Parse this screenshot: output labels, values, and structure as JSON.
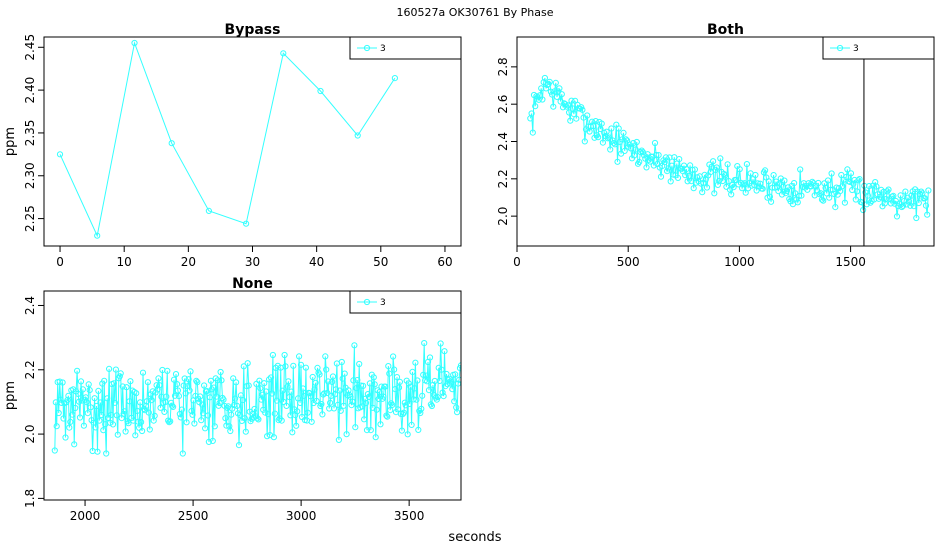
{
  "page": {
    "suptitle": "160527a   OK30761   By Phase",
    "xlabel": "seconds"
  },
  "colors": {
    "series": "#33ffff",
    "axis": "#000000",
    "marker": "#000000"
  },
  "chart_data": [
    {
      "type": "line",
      "title": "Bypass",
      "ylabel": "ppm",
      "xlim": [
        -2.5,
        62.5
      ],
      "ylim": [
        2.218,
        2.462
      ],
      "xticks": [
        "0",
        "10",
        "20",
        "30",
        "40",
        "50",
        "60"
      ],
      "xtick_values": [
        0,
        10,
        20,
        30,
        40,
        50,
        60
      ],
      "yticks": [
        "2.25",
        "2.30",
        "2.35",
        "2.40",
        "2.45"
      ],
      "ytick_values": [
        2.25,
        2.3,
        2.35,
        2.4,
        2.45
      ],
      "legend": {
        "label": "3",
        "position": "top-right"
      },
      "series": [
        {
          "name": "3",
          "x": [
            0,
            5.8,
            11.6,
            17.4,
            23.2,
            29.0,
            34.8,
            40.6,
            46.4,
            52.2
          ],
          "y": [
            2.325,
            2.23,
            2.455,
            2.338,
            2.259,
            2.244,
            2.443,
            2.399,
            2.347,
            2.414
          ]
        }
      ]
    },
    {
      "type": "line",
      "title": "Both",
      "ylabel": "",
      "xlim": [
        0,
        1875
      ],
      "ylim": [
        1.84,
        2.96
      ],
      "xticks": [
        "0",
        "500",
        "1000",
        "1500"
      ],
      "xtick_values": [
        0,
        500,
        1000,
        1500
      ],
      "yticks": [
        "2.0",
        "2.2",
        "2.4",
        "2.6",
        "2.8"
      ],
      "ytick_values": [
        2.0,
        2.2,
        2.4,
        2.6,
        2.8
      ],
      "vline_x": 1560,
      "legend": {
        "label": "3",
        "position": "top-right"
      },
      "series": [
        {
          "name": "3",
          "x_start": 60,
          "x_end": 1850,
          "n": 330,
          "trend": [
            [
              60,
              2.5
            ],
            [
              120,
              2.72
            ],
            [
              250,
              2.56
            ],
            [
              500,
              2.36
            ],
            [
              800,
              2.22
            ],
            [
              1200,
              2.16
            ],
            [
              1500,
              2.14
            ],
            [
              1850,
              2.08
            ]
          ],
          "noise_amp": 0.085,
          "seed": 7
        }
      ]
    },
    {
      "type": "line",
      "title": "None",
      "ylabel": "ppm",
      "xlim": [
        1810,
        3740
      ],
      "ylim": [
        1.795,
        2.445
      ],
      "xticks": [
        "2000",
        "2500",
        "3000",
        "3500"
      ],
      "xtick_values": [
        2000,
        2500,
        3000,
        3500
      ],
      "yticks": [
        "1.8",
        "2.0",
        "2.2",
        "2.4"
      ],
      "ytick_values": [
        1.8,
        2.0,
        2.2,
        2.4
      ],
      "legend": {
        "label": "3",
        "position": "top-right"
      },
      "series": [
        {
          "name": "3",
          "x_start": 1860,
          "x_end": 3740,
          "n": 420,
          "trend": [
            [
              1860,
              2.08
            ],
            [
              2500,
              2.1
            ],
            [
              3000,
              2.12
            ],
            [
              3740,
              2.14
            ]
          ],
          "noise_amp": 0.11,
          "seed": 31
        }
      ]
    }
  ]
}
